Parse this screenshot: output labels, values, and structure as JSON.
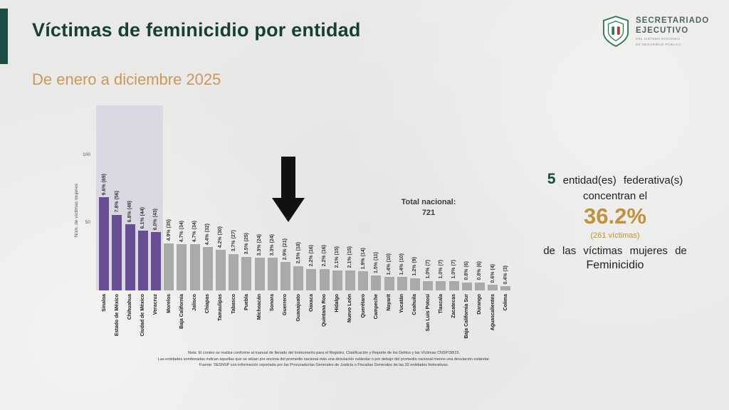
{
  "page": {
    "title": "Víctimas de feminicidio por entidad",
    "subtitle": "De enero a diciembre 2025"
  },
  "logo": {
    "name_line1": "SECRETARIADO",
    "name_line2": "EJECUTIVO",
    "sub_line1": "DEL SISTEMA NACIONAL",
    "sub_line2": "DE SEGURIDAD PÚBLICA"
  },
  "chart_data": {
    "type": "bar",
    "title": "",
    "xlabel": "",
    "ylabel": "Núm. de víctimas mujeres",
    "yticks": [
      50,
      100
    ],
    "ylim": [
      0,
      135
    ],
    "grid": false,
    "legend": "none",
    "highlighted_first_n": 5,
    "total_label": "Total nacional:",
    "total_value": "721",
    "categories": [
      "Sinaloa",
      "Estado de México",
      "Chihuahua",
      "Ciudad de México",
      "Veracruz",
      "Morelos",
      "Baja California",
      "Jalisco",
      "Chiapas",
      "Tamaulipas",
      "Tabasco",
      "Puebla",
      "Michoacán",
      "Sonora",
      "Guerrero",
      "Guanajuato",
      "Oaxaca",
      "Quintana Roo",
      "Hidalgo",
      "Nuevo León",
      "Querétaro",
      "Campeche",
      "Nayarit",
      "Yucatán",
      "Coahuila",
      "San Luis Potosí",
      "Tlaxcala",
      "Zacatecas",
      "Baja California Sur",
      "Durango",
      "Aguascalientes",
      "Colima"
    ],
    "values": [
      69,
      56,
      49,
      44,
      43,
      35,
      34,
      34,
      32,
      30,
      27,
      25,
      24,
      24,
      21,
      18,
      16,
      16,
      15,
      15,
      14,
      11,
      10,
      10,
      9,
      7,
      7,
      7,
      6,
      6,
      4,
      3
    ],
    "bar_labels": [
      "9.6% (69)",
      "7.8% (56)",
      "6.8% (49)",
      "6.1% (44)",
      "6.0% (43)",
      "4.9% (35)",
      "4.7% (34)",
      "4.7% (34)",
      "4.4% (32)",
      "4.2% (30)",
      "3.7% (27)",
      "3.5% (25)",
      "3.3% (24)",
      "3.3% (24)",
      "2.9% (21)",
      "2.5% (18)",
      "2.2% (16)",
      "2.2% (16)",
      "2.1% (15)",
      "2.1% (15)",
      "1.9% (14)",
      "1.5% (11)",
      "1.4% (10)",
      "1.4% (10)",
      "1.2% (9)",
      "1.0% (7)",
      "1.0% (7)",
      "1.0% (7)",
      "0.8% (6)",
      "0.8% (6)",
      "0.6% (4)",
      "0.4% (3)"
    ],
    "colors": {
      "highlight_bar": "#6a4e94",
      "bar": "#a9a9a9",
      "highlight_box": "#d9d9e3",
      "arrow": "#111111"
    }
  },
  "callout": {
    "count": "5",
    "entity_text": "entidad(es) federativa(s)",
    "concentrate_text": "concentran el",
    "percentage": "36.2%",
    "victims_text": "(261 víctimas)",
    "of_text": "de las víctimas mujeres de",
    "crime_text": "Feminicidio",
    "accent_color": "#164a3d",
    "gold_color": "#bf923b"
  },
  "footnote": {
    "line1": "Nota: El conteo se realiza conforme al manual de llenado del Instrumento para el Registro, Clasificación y Reporte de los Delitos y las Víctimas CNSP/38/15.",
    "line2": "Las entidades sombreadas indican aquellas que se sitúan por encima del promedio nacional más una desviación estándar o por debajo del promedio nacional menos una desviación estándar.",
    "line3": "Fuente: SESNSP con información reportada por las Procuradurías Generales de Justicia o Fiscalías Generales de las 32 entidades federativas."
  }
}
